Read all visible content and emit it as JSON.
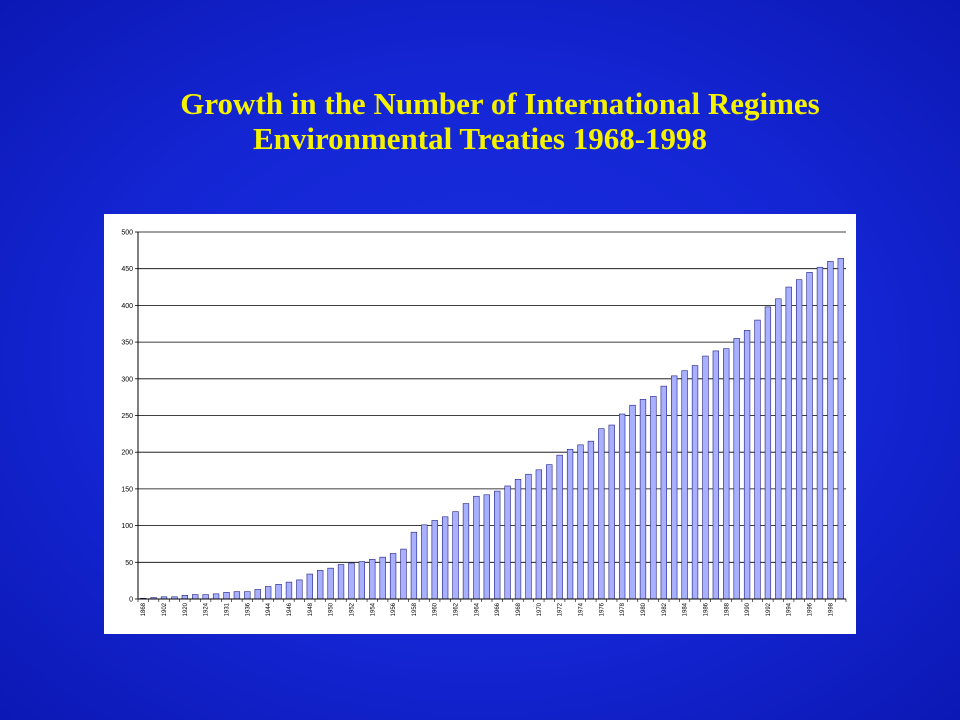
{
  "slide": {
    "title_line1": "Growth in the Number of International Regimes",
    "title_line2": "Environmental Treaties 1968-1998",
    "title_color": "#f5f200",
    "background_color": "#1426d4"
  },
  "chart_data": {
    "type": "bar",
    "title": "",
    "xlabel": "",
    "ylabel": "",
    "ylim": [
      0,
      500
    ],
    "yticks": [
      0,
      50,
      100,
      150,
      200,
      250,
      300,
      350,
      400,
      450,
      500
    ],
    "grid": true,
    "bar_color": "#a8b0ff",
    "bar_edge_color": "#202080",
    "x_tick_labels": [
      "1868",
      "1902",
      "1920",
      "1924",
      "1931",
      "1936",
      "1944",
      "1946",
      "1948",
      "1950",
      "1952",
      "1954",
      "1956",
      "1958",
      "1960",
      "1962",
      "1964",
      "1966",
      "1968",
      "1970",
      "1972",
      "1974",
      "1976",
      "1978",
      "1980",
      "1982",
      "1984",
      "1986",
      "1988",
      "1990",
      "1992",
      "1994",
      "1996",
      "1998"
    ],
    "values": [
      1,
      2,
      3,
      3,
      5,
      6,
      6,
      7,
      9,
      10,
      10,
      13,
      17,
      20,
      23,
      26,
      34,
      39,
      42,
      47,
      49,
      51,
      54,
      57,
      62,
      68,
      91,
      101,
      107,
      112,
      119,
      130,
      140,
      142,
      147,
      154,
      163,
      170,
      176,
      183,
      196,
      204,
      210,
      215,
      232,
      237,
      252,
      264,
      272,
      276,
      290,
      304,
      311,
      318,
      331,
      338,
      341,
      355,
      366,
      380,
      398,
      409,
      425,
      435,
      445,
      452,
      460,
      464
    ]
  }
}
